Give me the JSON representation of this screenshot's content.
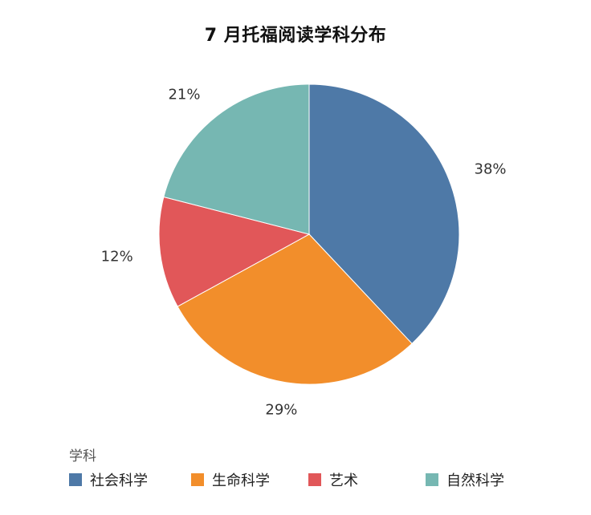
{
  "chart_data": {
    "type": "pie",
    "title": "7 月托福阅读学科分布",
    "legend_title": "学科",
    "legend_position": "bottom-left",
    "slices": [
      {
        "name": "社会科学",
        "value": 38,
        "label": "38%",
        "color": "#4e79a7"
      },
      {
        "name": "生命科学",
        "value": 29,
        "label": "29%",
        "color": "#f28e2b"
      },
      {
        "name": "艺术",
        "value": 12,
        "label": "12%",
        "color": "#e15759"
      },
      {
        "name": "自然科学",
        "value": 21,
        "label": "21%",
        "color": "#76b7b2"
      }
    ]
  }
}
